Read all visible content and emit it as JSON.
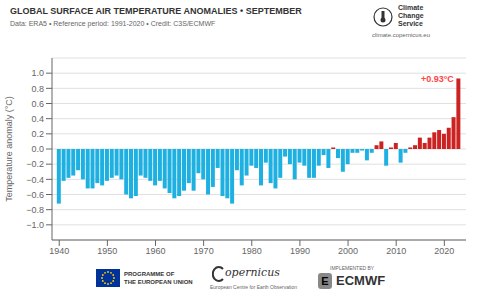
{
  "chart_data": {
    "type": "bar",
    "title": "GLOBAL SURFACE AIR TEMPERATURE ANOMALIES • SEPTEMBER",
    "subtitle": "Data: ERA5 • Reference period: 1991-2020 • Credit: C3S/ECMWF",
    "ylabel": "Temperature anomaly (°C)",
    "x": [
      1940,
      1941,
      1942,
      1943,
      1944,
      1945,
      1946,
      1947,
      1948,
      1949,
      1950,
      1951,
      1952,
      1953,
      1954,
      1955,
      1956,
      1957,
      1958,
      1959,
      1960,
      1961,
      1962,
      1963,
      1964,
      1965,
      1966,
      1967,
      1968,
      1969,
      1970,
      1971,
      1972,
      1973,
      1974,
      1975,
      1976,
      1977,
      1978,
      1979,
      1980,
      1981,
      1982,
      1983,
      1984,
      1985,
      1986,
      1987,
      1988,
      1989,
      1990,
      1991,
      1992,
      1993,
      1994,
      1995,
      1996,
      1997,
      1998,
      1999,
      2000,
      2001,
      2002,
      2003,
      2004,
      2005,
      2006,
      2007,
      2008,
      2009,
      2010,
      2011,
      2012,
      2013,
      2014,
      2015,
      2016,
      2017,
      2018,
      2019,
      2020,
      2021,
      2022,
      2023
    ],
    "values": [
      -0.72,
      -0.42,
      -0.38,
      -0.35,
      -0.28,
      -0.4,
      -0.52,
      -0.52,
      -0.45,
      -0.48,
      -0.42,
      -0.38,
      -0.35,
      -0.4,
      -0.6,
      -0.65,
      -0.62,
      -0.35,
      -0.38,
      -0.42,
      -0.48,
      -0.42,
      -0.52,
      -0.58,
      -0.65,
      -0.62,
      -0.55,
      -0.45,
      -0.55,
      -0.32,
      -0.4,
      -0.6,
      -0.5,
      -0.25,
      -0.62,
      -0.65,
      -0.72,
      -0.28,
      -0.48,
      -0.35,
      -0.22,
      -0.25,
      -0.48,
      -0.18,
      -0.45,
      -0.52,
      -0.38,
      -0.1,
      -0.2,
      -0.4,
      -0.18,
      -0.22,
      -0.38,
      -0.38,
      -0.22,
      -0.08,
      -0.25,
      0.02,
      -0.12,
      -0.3,
      -0.2,
      -0.05,
      -0.05,
      -0.02,
      -0.15,
      -0.05,
      0.05,
      0.1,
      -0.22,
      0.02,
      0.08,
      -0.18,
      -0.05,
      0.02,
      0.05,
      0.15,
      0.08,
      0.15,
      0.22,
      0.25,
      0.2,
      0.28,
      0.42,
      0.93
    ],
    "colors": [
      "#1eb0e0",
      "#1eb0e0",
      "#1eb0e0",
      "#1eb0e0",
      "#1eb0e0",
      "#1eb0e0",
      "#1eb0e0",
      "#1eb0e0",
      "#1eb0e0",
      "#1eb0e0",
      "#1eb0e0",
      "#1eb0e0",
      "#1eb0e0",
      "#1eb0e0",
      "#1eb0e0",
      "#1eb0e0",
      "#1eb0e0",
      "#1eb0e0",
      "#1eb0e0",
      "#1eb0e0",
      "#1eb0e0",
      "#1eb0e0",
      "#1eb0e0",
      "#1eb0e0",
      "#1eb0e0",
      "#1eb0e0",
      "#1eb0e0",
      "#1eb0e0",
      "#1eb0e0",
      "#1eb0e0",
      "#1eb0e0",
      "#1eb0e0",
      "#1eb0e0",
      "#1eb0e0",
      "#1eb0e0",
      "#1eb0e0",
      "#1eb0e0",
      "#1eb0e0",
      "#1eb0e0",
      "#1eb0e0",
      "#1eb0e0",
      "#1eb0e0",
      "#1eb0e0",
      "#1eb0e0",
      "#1eb0e0",
      "#1eb0e0",
      "#1eb0e0",
      "#1eb0e0",
      "#1eb0e0",
      "#1eb0e0",
      "#1eb0e0",
      "#1eb0e0",
      "#1eb0e0",
      "#1eb0e0",
      "#1eb0e0",
      "#1eb0e0",
      "#1eb0e0",
      "#cc2222",
      "#1eb0e0",
      "#1eb0e0",
      "#1eb0e0",
      "#1eb0e0",
      "#1eb0e0",
      "#1eb0e0",
      "#1eb0e0",
      "#1eb0e0",
      "#cc2222",
      "#cc2222",
      "#1eb0e0",
      "#cc2222",
      "#cc2222",
      "#1eb0e0",
      "#1eb0e0",
      "#cc2222",
      "#cc2222",
      "#cc2222",
      "#cc2222",
      "#cc2222",
      "#cc2222",
      "#cc2222",
      "#cc2222",
      "#cc2222",
      "#cc2222",
      "#cc2222"
    ],
    "xlim": [
      1938.5,
      2024.5
    ],
    "xticks": [
      1940,
      1950,
      1960,
      1970,
      1980,
      1990,
      2000,
      2010,
      2020
    ],
    "ylim": [
      -1.2,
      1.2
    ],
    "yticks": [
      {
        "value": -1.0,
        "label": "−1.0"
      },
      {
        "value": -0.8,
        "label": "−0.8"
      },
      {
        "value": -0.6,
        "label": "−0.6"
      },
      {
        "value": -0.4,
        "label": "−0.4"
      },
      {
        "value": -0.2,
        "label": "−0.2"
      },
      {
        "value": 0.0,
        "label": "0.0"
      },
      {
        "value": 0.2,
        "label": "0.2"
      },
      {
        "value": 0.4,
        "label": "0.4"
      },
      {
        "value": 0.6,
        "label": "0.6"
      },
      {
        "value": 0.8,
        "label": "0.8"
      },
      {
        "value": 1.0,
        "label": "1.0"
      }
    ],
    "grid": true,
    "annotations": [
      {
        "text": "+0.93°C",
        "x": 2023,
        "y": 0.93,
        "color": "#ff4444"
      },
      {
        "text": "Climate"
      },
      {
        "text": "Change"
      },
      {
        "text": "Service"
      },
      {
        "text": "climate.copernicus.eu"
      },
      {
        "text": "PROGRAMME OF\nTHE EUROPEAN UNION"
      },
      {
        "text": "opernicus"
      },
      {
        "text": "European Centre for Earth Observation"
      },
      {
        "text": "IMPLEMENTED BY"
      },
      {
        "text": "E"
      },
      {
        "text": "ECMWF"
      }
    ]
  }
}
